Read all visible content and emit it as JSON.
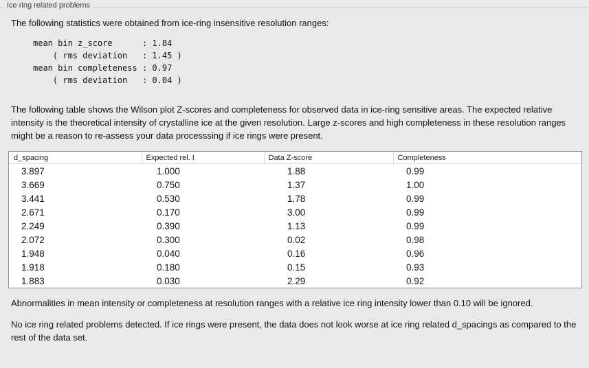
{
  "panel": {
    "title": "Ice ring related problems"
  },
  "intro": "The following statistics were obtained from ice-ring insensitive resolution ranges:",
  "stats": {
    "text": "mean bin z_score      : 1.84\n    ( rms deviation   : 1.45 )\nmean bin completeness : 0.97\n    ( rms deviation   : 0.04 )"
  },
  "description": "The following table shows the Wilson plot Z-scores and completeness for observed data in ice-ring sensitive areas. The expected relative intensity is the theoretical intensity of crystalline ice at the given resolution. Large z-scores and high completeness in these resolution ranges might be a reason to re-assess your data processsing if ice rings were present.",
  "table": {
    "columns": [
      "d_spacing",
      "Expected rel. I",
      "Data Z-score",
      "Completeness"
    ],
    "rows": [
      [
        "3.897",
        "1.000",
        "1.88",
        "0.99"
      ],
      [
        "3.669",
        "0.750",
        "1.37",
        "1.00"
      ],
      [
        "3.441",
        "0.530",
        "1.78",
        "0.99"
      ],
      [
        "2.671",
        "0.170",
        "3.00",
        "0.99"
      ],
      [
        "2.249",
        "0.390",
        "1.13",
        "0.99"
      ],
      [
        "2.072",
        "0.300",
        "0.02",
        "0.98"
      ],
      [
        "1.948",
        "0.040",
        "0.16",
        "0.96"
      ],
      [
        "1.918",
        "0.180",
        "0.15",
        "0.93"
      ],
      [
        "1.883",
        "0.030",
        "2.29",
        "0.92"
      ]
    ]
  },
  "note_ignored": "Abnormalities in mean intensity or completeness at resolution ranges with a relative ice ring intensity lower than 0.10 will be ignored.",
  "conclusion": "No ice ring related problems detected. If ice rings were present, the data does not look worse at ice ring related d_spacings as compared to the rest of the data set."
}
